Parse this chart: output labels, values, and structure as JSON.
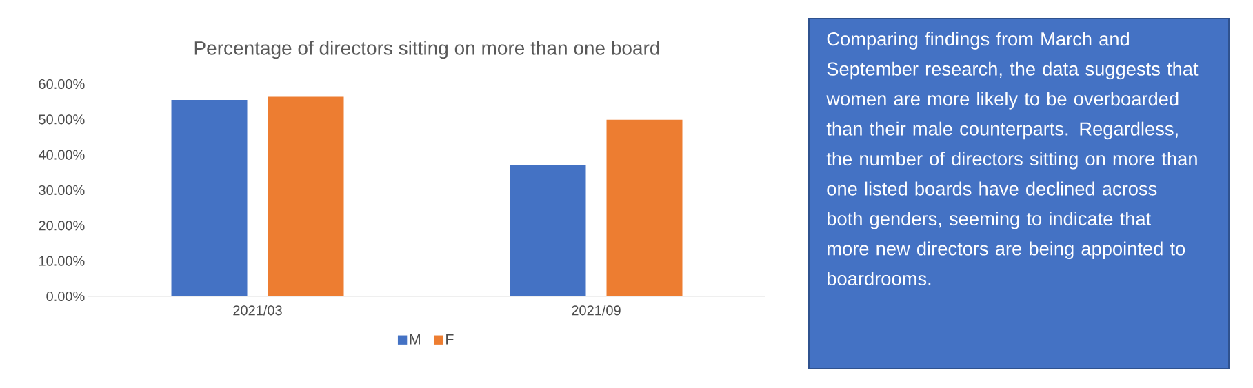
{
  "chart_data": {
    "type": "bar",
    "title": "Percentage of directors sitting on more than one board",
    "categories": [
      "2021/03",
      "2021/09"
    ],
    "series": [
      {
        "name": "M",
        "color": "#4472c4",
        "values": [
          55.5,
          37.0
        ]
      },
      {
        "name": "F",
        "color": "#ed7d31",
        "values": [
          56.4,
          49.9
        ]
      }
    ],
    "ylim": [
      0,
      60
    ],
    "yticks": [
      {
        "value": 0,
        "label": "0.00%"
      },
      {
        "value": 10,
        "label": "10.00%"
      },
      {
        "value": 20,
        "label": "20.00%"
      },
      {
        "value": 30,
        "label": "30.00%"
      },
      {
        "value": 40,
        "label": "40.00%"
      },
      {
        "value": 50,
        "label": "50.00%"
      },
      {
        "value": 60,
        "label": "60.00%"
      }
    ],
    "grid": false,
    "legend": "bottom",
    "annotations": [
      "Comparing findings from March and September research, the data suggests that women are more likely to be overboarded than their male counterparts. Regardless, the number of directors sitting on more than one listed boards have declined across both genders, seeming to indicate that more new directors are being appointed to boardrooms."
    ]
  }
}
